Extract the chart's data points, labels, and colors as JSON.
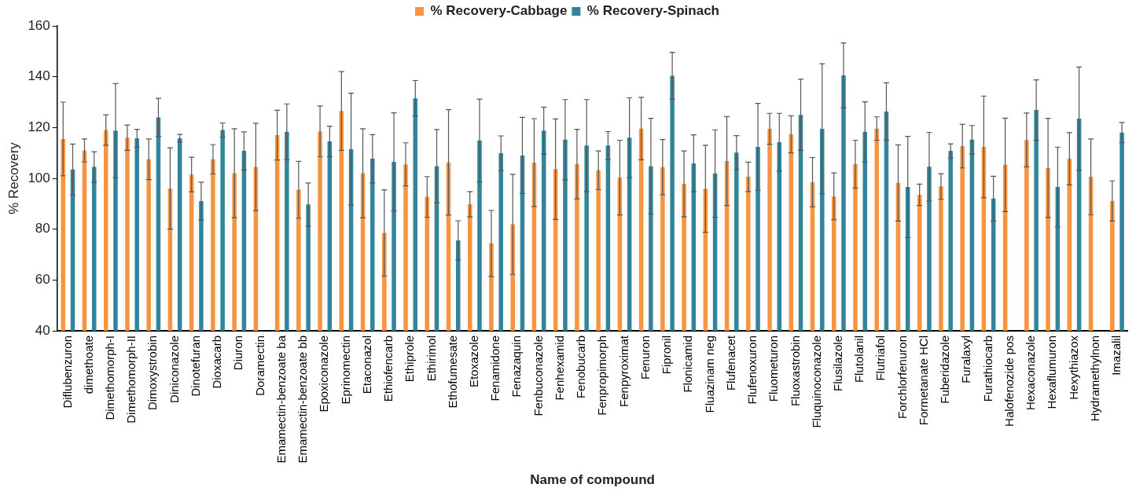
{
  "chart_data": {
    "type": "bar",
    "xlabel": "Name of compound",
    "ylabel": "% Recovery",
    "ylim": [
      40,
      160
    ],
    "yticks": [
      40,
      60,
      80,
      100,
      120,
      140,
      160
    ],
    "grid": false,
    "legend": "top",
    "categories": [
      "Diflubenzuron",
      "dimethoate",
      "Dimethomorph-I",
      "Dimethomorph-II",
      "Dimoxystrobin",
      "Diniconazole",
      "Dinotefuran",
      "Dioxacarb",
      "Diuron",
      "Doramectin",
      "Emamectin-benzoate ba",
      "Emamectin-benzoate bb",
      "Epoxiconazole",
      "Eprinomectin",
      "Etaconazol",
      "Ethiofencarb",
      "Ethiprole",
      "Ethirimol",
      "Ethofumesate",
      "Etoxazole",
      "Fenamidone",
      "Fenazaquin",
      "Fenbuconazole",
      "Fenhexamid",
      "Fenobucarb",
      "Fenpropimorph",
      "Fenpyroximat",
      "Fenuron",
      "Fipronil",
      "Flonicamid",
      "Fluazinam neg",
      "Flufenacet",
      "Flufenoxuron",
      "Fluometuron",
      "Fluoxastrobin",
      "Fluquinoconazole",
      "Flusilazole",
      "Flutolanil",
      "Flutriafol",
      "Forchlorfenuron",
      "Formetanate HCl",
      "Fuberidazole",
      "Furalaxyl",
      "Furathiocarb",
      "Halofenozide pos",
      "Hexaconazole",
      "Hexaflumuron",
      "Hexythiazox",
      "Hydramethylnon",
      "Imazalil"
    ],
    "series": [
      {
        "name": "% Recovery-Cabbage",
        "color": "#f7943f",
        "values": [
          115.5,
          111,
          119,
          116,
          107.5,
          96,
          101.5,
          107.5,
          102,
          104.5,
          117,
          95.5,
          118.5,
          126.5,
          102,
          78.5,
          105.5,
          92.7,
          106.3,
          89.8,
          74.4,
          81.9,
          106.2,
          103.6,
          105.6,
          103.2,
          100.3,
          119.6,
          104.4,
          97.8,
          95.9,
          106.8,
          100.6,
          119.5,
          117.3,
          98.5,
          92.9,
          105.6,
          119.6,
          98.2,
          93.5,
          96.8,
          112.7,
          112.4,
          105.3,
          115.1,
          104.1,
          107.7,
          100.6,
          91.1
        ],
        "errors": [
          14.5,
          4.5,
          6,
          5,
          8,
          16,
          6.8,
          5.8,
          17.5,
          17.2,
          9.8,
          11.2,
          10,
          15.5,
          17.5,
          17,
          8.5,
          8,
          20.7,
          5,
          13,
          19.7,
          17.3,
          19.8,
          13.7,
          7.6,
          14.7,
          12.3,
          10.9,
          13,
          17.1,
          17.5,
          5.8,
          6.1,
          7.3,
          9.7,
          9.2,
          9.4,
          4.6,
          15,
          4.2,
          5,
          8.6,
          20,
          18.4,
          10.6,
          19.5,
          10.3,
          14.9,
          7.9
        ]
      },
      {
        "name": "% Recovery-Spinach",
        "color": "#32849b",
        "values": [
          103.5,
          104.5,
          118.8,
          115.8,
          124,
          115.8,
          91,
          119,
          110.8,
          null,
          118.3,
          89.7,
          114.5,
          111.5,
          107.7,
          106.5,
          131.5,
          104.8,
          75.6,
          114.9,
          109.9,
          109,
          118.8,
          115.2,
          112.9,
          112.9,
          116,
          104.8,
          140.4,
          105.9,
          101.9,
          110.1,
          112.4,
          114.2,
          125,
          119.5,
          140.5,
          118.3,
          126.3,
          96.6,
          104.6,
          110.8,
          115.2,
          92,
          null,
          126.9,
          96.6,
          123.5,
          null,
          118
        ],
        "errors": [
          10,
          6,
          18.5,
          3.5,
          7.5,
          1.5,
          7.5,
          2.8,
          7.5,
          null,
          11,
          8.5,
          6,
          22,
          9.5,
          19.3,
          7,
          14.4,
          7.7,
          16.3,
          6.8,
          15,
          9.2,
          15.8,
          18.1,
          5.5,
          15.7,
          18.8,
          9.2,
          11.2,
          17.2,
          6.7,
          17.1,
          11.4,
          14,
          25.6,
          12.8,
          11.8,
          11.3,
          19.9,
          13.5,
          2.8,
          5.6,
          8.8,
          null,
          11.9,
          15.7,
          20.3,
          null,
          4
        ]
      }
    ]
  }
}
